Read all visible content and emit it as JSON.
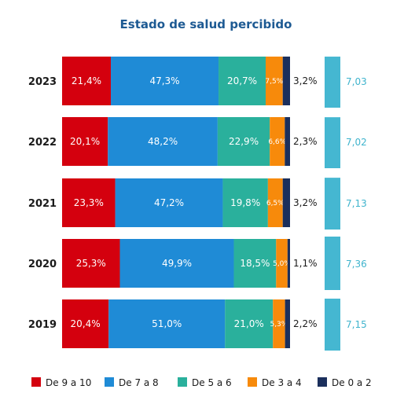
{
  "chart_data": {
    "type": "bar",
    "orientation": "horizontal",
    "stacked": true,
    "percent": true,
    "title": "Estado de salud percibido",
    "categories": [
      "2023",
      "2022",
      "2021",
      "2020",
      "2019"
    ],
    "series": [
      {
        "name": "De 9 a 10",
        "color": "#d4000e",
        "values": [
          21.4,
          20.1,
          23.3,
          25.3,
          20.4
        ],
        "labels": [
          "21,4%",
          "20,1%",
          "23,3%",
          "25,3%",
          "20,4%"
        ]
      },
      {
        "name": "De 7 a 8",
        "color": "#1f8bd6",
        "values": [
          47.3,
          48.2,
          47.2,
          49.9,
          51.0
        ],
        "labels": [
          "47,3%",
          "48,2%",
          "47,2%",
          "49,9%",
          "51,0%"
        ]
      },
      {
        "name": "De 5 a 6",
        "color": "#2ab09c",
        "values": [
          20.7,
          22.9,
          19.8,
          18.5,
          21.0
        ],
        "labels": [
          "20,7%",
          "22,9%",
          "19,8%",
          "18,5%",
          "21,0%"
        ]
      },
      {
        "name": "De 3 a 4",
        "color": "#f78a0b",
        "values": [
          7.5,
          6.6,
          6.5,
          5.0,
          5.3
        ],
        "labels": [
          "7,5%",
          "6,6%",
          "6,5%",
          "5,0%",
          "5,3%"
        ]
      },
      {
        "name": "De 0 a 2",
        "color": "#1b2f5c",
        "values": [
          3.2,
          2.3,
          3.2,
          1.1,
          2.2
        ],
        "labels": [
          "3,2%",
          "2,3%",
          "3,2%",
          "1,1%",
          "2,2%"
        ]
      }
    ],
    "scores": {
      "color": "#45b7d1",
      "values": [
        7.03,
        7.02,
        7.13,
        7.36,
        7.15
      ],
      "labels": [
        "7,03",
        "7,02",
        "7,13",
        "7,36",
        "7,15"
      ]
    },
    "legend": "bottom",
    "grid": false
  }
}
